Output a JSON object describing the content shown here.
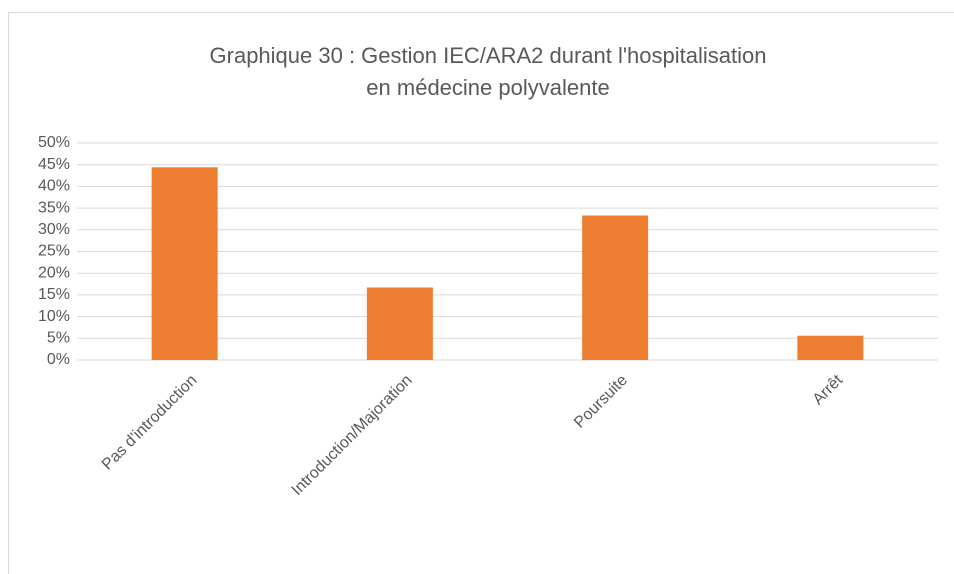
{
  "chart_data": {
    "type": "bar",
    "title": "Graphique 30 : Gestion IEC/ARA2 durant l'hospitalisation en médecine polyvalente",
    "categories": [
      "Pas d'introduction",
      "Introduction/Majoration",
      "Poursuite",
      "Arrêt"
    ],
    "values": [
      44.4,
      16.7,
      33.3,
      5.6
    ],
    "color": "#ed7d31",
    "ylim": [
      0,
      50
    ],
    "yticks": [
      {
        "value": 0,
        "label": "0%"
      },
      {
        "value": 5,
        "label": "5%"
      },
      {
        "value": 10,
        "label": "10%"
      },
      {
        "value": 15,
        "label": "15%"
      },
      {
        "value": 20,
        "label": "20%"
      },
      {
        "value": 25,
        "label": "25%"
      },
      {
        "value": 30,
        "label": "30%"
      },
      {
        "value": 35,
        "label": "35%"
      },
      {
        "value": 40,
        "label": "40%"
      },
      {
        "value": 45,
        "label": "45%"
      },
      {
        "value": 50,
        "label": "50%"
      }
    ],
    "grid": true
  }
}
